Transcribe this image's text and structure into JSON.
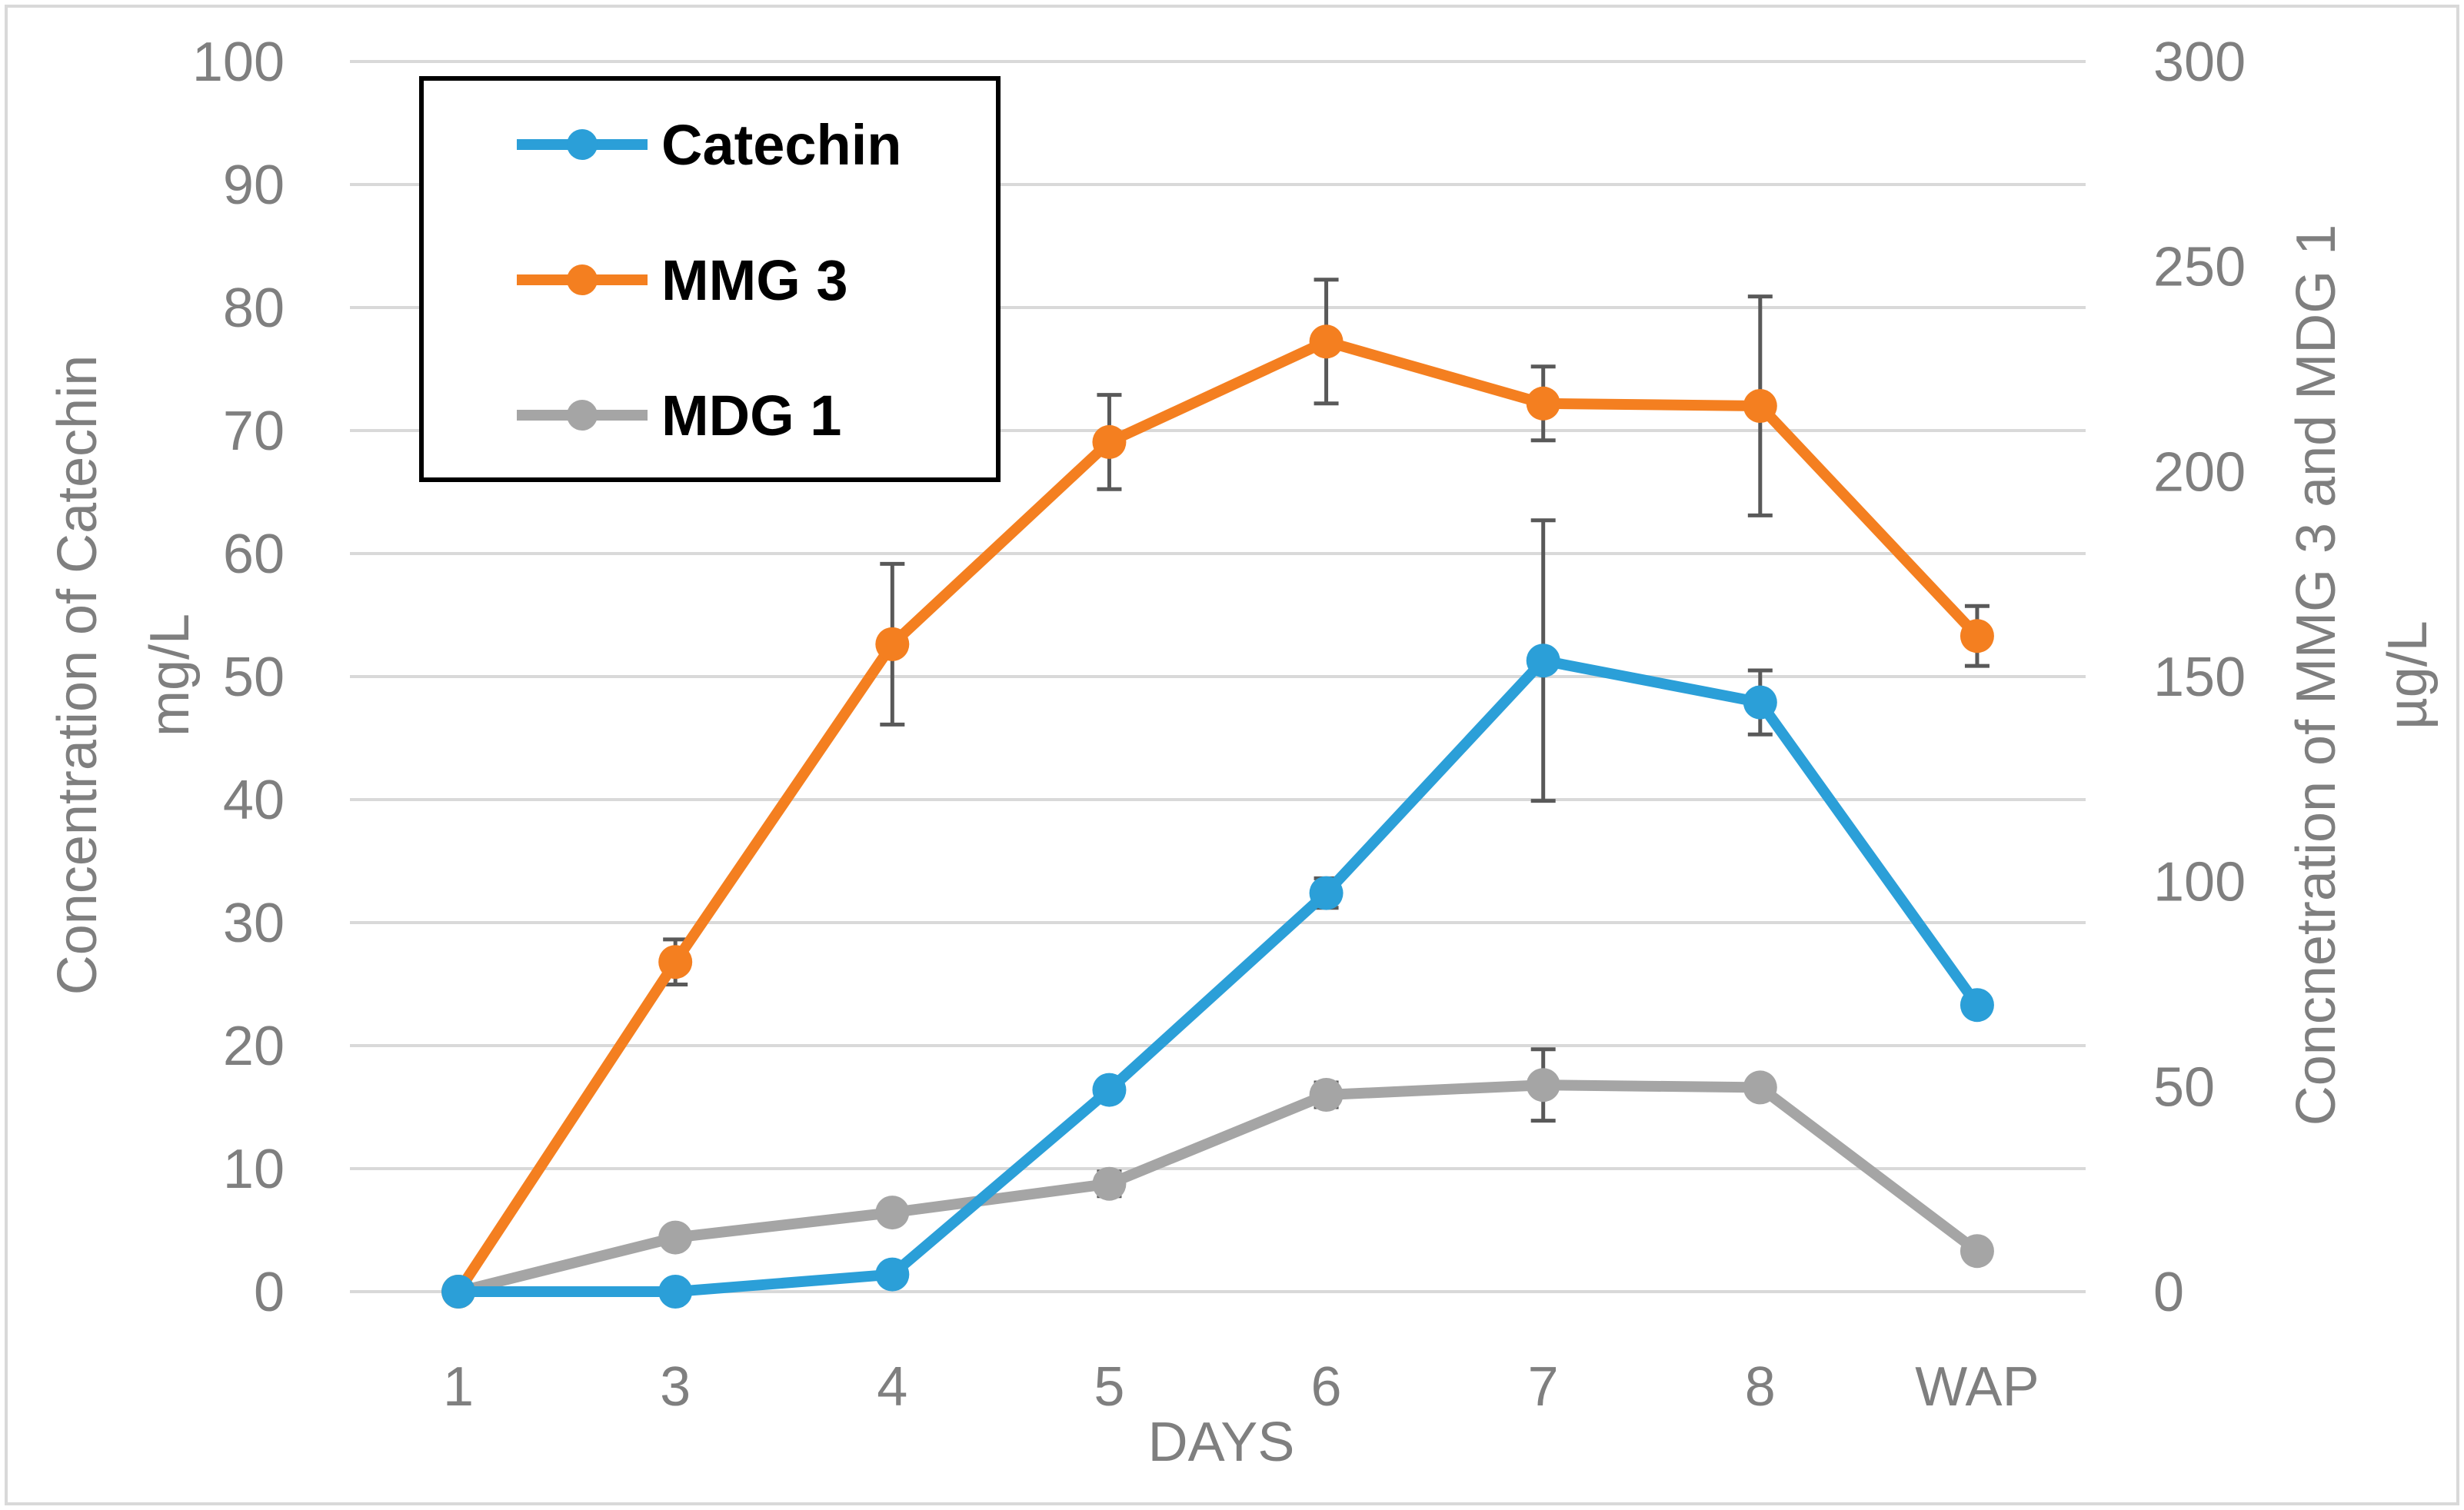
{
  "chart_data": {
    "type": "line",
    "categories": [
      "1",
      "3",
      "4",
      "5",
      "6",
      "7",
      "8",
      "WAP"
    ],
    "xlabel": "DAYS",
    "ylabel_left": [
      "Concentration of Catechin",
      "mg/L"
    ],
    "ylabel_right": [
      "Concnetration of MMG 3 and MDG 1",
      "µg/L"
    ],
    "ylim_left": [
      0,
      100
    ],
    "yticks_left": [
      0,
      10,
      20,
      30,
      40,
      50,
      60,
      70,
      80,
      90,
      100
    ],
    "ylim_right": [
      0,
      300
    ],
    "yticks_right": [
      0,
      50,
      100,
      150,
      200,
      250,
      300
    ],
    "grid": true,
    "legend_position": "top-left",
    "series": [
      {
        "name": "Catechin",
        "axis": "left",
        "color": "#2b9fd8",
        "values": [
          0,
          0,
          1.4,
          16.4,
          32.4,
          51.3,
          47.9,
          23.3
        ],
        "errors": [
          0,
          0,
          0,
          0,
          1.2,
          11.4,
          2.6,
          0
        ]
      },
      {
        "name": "MMG 3",
        "axis": "right",
        "color": "#f47f20",
        "values": [
          0,
          80.4,
          157.9,
          207.2,
          231.7,
          216.6,
          216.0,
          159.9
        ],
        "errors": [
          0,
          5.5,
          19.6,
          11.5,
          15.1,
          9.0,
          26.7,
          7.3
        ]
      },
      {
        "name": "MDG 1",
        "axis": "right",
        "color": "#a5a5a5",
        "values": [
          0,
          13.2,
          19.3,
          26.3,
          48.0,
          50.4,
          49.8,
          9.9
        ],
        "errors": [
          0,
          0,
          0,
          3.0,
          3.0,
          8.7,
          0,
          0
        ]
      }
    ]
  }
}
